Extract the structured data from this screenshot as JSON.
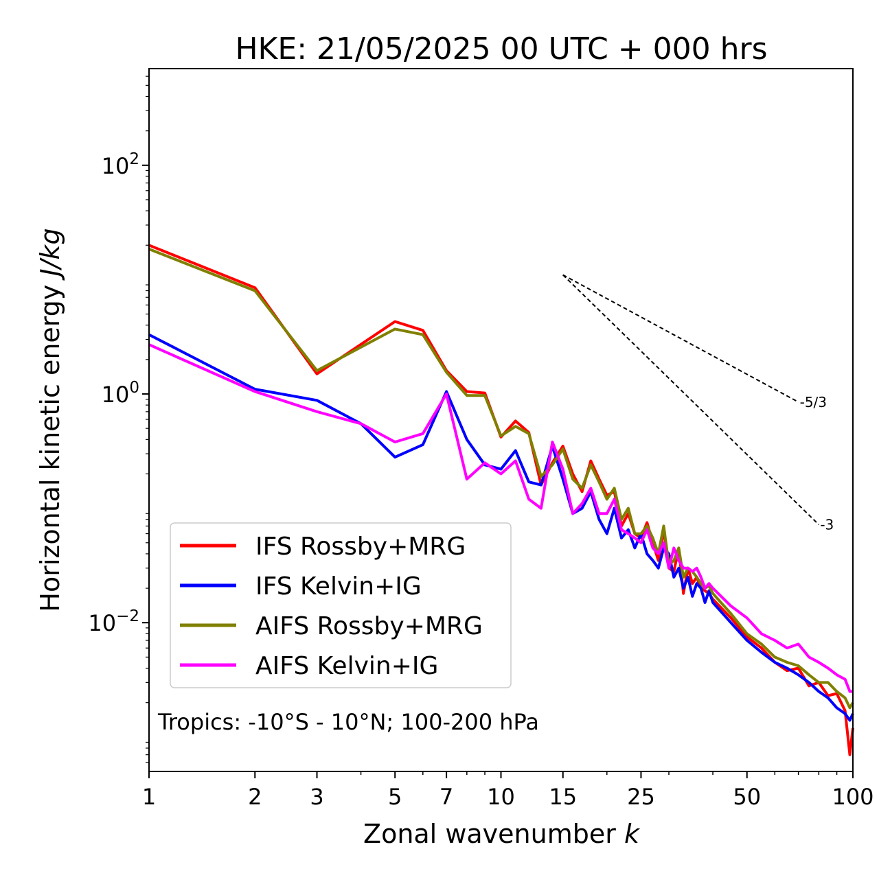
{
  "chart_data": {
    "type": "line",
    "title": "HKE: 21/05/2025 00 UTC + 000 hrs",
    "xlabel": "Zonal wavenumber",
    "xlabel_var": "k",
    "ylabel": "Horizontal kinetic energy",
    "ylabel_unit": "J/kg",
    "xscale": "log",
    "yscale": "log",
    "xlim": [
      1,
      100
    ],
    "ylim": [
      0.0005,
      700
    ],
    "xticks": [
      1,
      2,
      3,
      5,
      7,
      10,
      15,
      25,
      50,
      100
    ],
    "xtick_labels": [
      "1",
      "2",
      "3",
      "5",
      "7",
      "10",
      "15",
      "25",
      "50",
      "100"
    ],
    "yticks": [
      100,
      1,
      0.01
    ],
    "ytick_labels": [
      {
        "base": "10",
        "exp": "2"
      },
      {
        "base": "10",
        "exp": "0"
      },
      {
        "base": "10",
        "exp": "−2"
      }
    ],
    "grid": false,
    "legend_position": "lower-left",
    "annotation": "Tropics: -10°S - 10°N; 100-200 hPa",
    "reference_lines": [
      {
        "label": "-5/3",
        "slope": -1.6667,
        "x": [
          15,
          70
        ],
        "y": [
          11,
          0.85
        ]
      },
      {
        "label": "-3",
        "slope": -3,
        "x": [
          15,
          80
        ],
        "y": [
          11,
          0.072
        ]
      }
    ],
    "series": [
      {
        "name": "IFS Rossby+MRG",
        "color": "#ff0000",
        "x": [
          1,
          2,
          3,
          5,
          6,
          7,
          8,
          9,
          10,
          11,
          12,
          13,
          14,
          15,
          16,
          17,
          18,
          19,
          20,
          21,
          22,
          23,
          24,
          25,
          26,
          27,
          28,
          29,
          30,
          31,
          32,
          33,
          34,
          35,
          36,
          37,
          38,
          39,
          40,
          45,
          50,
          55,
          60,
          65,
          70,
          75,
          80,
          85,
          90,
          95,
          98,
          100
        ],
        "y": [
          20,
          8.5,
          1.5,
          4.3,
          3.6,
          1.6,
          1.05,
          1.02,
          0.42,
          0.58,
          0.46,
          0.16,
          0.25,
          0.35,
          0.2,
          0.14,
          0.26,
          0.18,
          0.13,
          0.14,
          0.07,
          0.09,
          0.06,
          0.055,
          0.075,
          0.05,
          0.035,
          0.065,
          0.03,
          0.028,
          0.045,
          0.018,
          0.03,
          0.022,
          0.025,
          0.02,
          0.019,
          0.018,
          0.016,
          0.011,
          0.0075,
          0.006,
          0.0045,
          0.0038,
          0.004,
          0.0028,
          0.003,
          0.0023,
          0.0024,
          0.0017,
          0.0007,
          0.0012
        ]
      },
      {
        "name": "IFS Kelvin+IG",
        "color": "#0000ff",
        "x": [
          1,
          2,
          3,
          4,
          5,
          6,
          7,
          8,
          9,
          10,
          11,
          12,
          13,
          14,
          15,
          16,
          17,
          18,
          19,
          20,
          21,
          22,
          23,
          24,
          25,
          26,
          27,
          28,
          29,
          30,
          31,
          32,
          33,
          34,
          35,
          36,
          37,
          38,
          39,
          40,
          45,
          50,
          55,
          60,
          65,
          70,
          75,
          80,
          85,
          90,
          95,
          98,
          100
        ],
        "y": [
          3.3,
          1.1,
          0.88,
          0.55,
          0.28,
          0.36,
          1.05,
          0.4,
          0.24,
          0.22,
          0.32,
          0.17,
          0.16,
          0.35,
          0.18,
          0.09,
          0.1,
          0.14,
          0.08,
          0.06,
          0.1,
          0.055,
          0.065,
          0.045,
          0.06,
          0.04,
          0.035,
          0.03,
          0.045,
          0.04,
          0.025,
          0.03,
          0.02,
          0.025,
          0.017,
          0.022,
          0.02,
          0.015,
          0.019,
          0.015,
          0.01,
          0.007,
          0.0055,
          0.0045,
          0.004,
          0.0035,
          0.003,
          0.0025,
          0.0022,
          0.0018,
          0.0016,
          0.0014,
          0.0016
        ]
      },
      {
        "name": "AIFS Rossby+MRG",
        "color": "#808000",
        "x": [
          1,
          2,
          3,
          5,
          6,
          7,
          8,
          9,
          10,
          11,
          12,
          13,
          14,
          15,
          16,
          17,
          18,
          19,
          20,
          21,
          22,
          23,
          24,
          25,
          26,
          27,
          28,
          29,
          30,
          31,
          32,
          33,
          34,
          35,
          36,
          37,
          38,
          39,
          40,
          45,
          50,
          55,
          60,
          65,
          70,
          75,
          80,
          85,
          90,
          95,
          98,
          100
        ],
        "y": [
          18.5,
          8.0,
          1.6,
          3.7,
          3.3,
          1.55,
          0.97,
          0.97,
          0.43,
          0.52,
          0.45,
          0.19,
          0.24,
          0.33,
          0.18,
          0.15,
          0.24,
          0.17,
          0.12,
          0.15,
          0.08,
          0.1,
          0.06,
          0.06,
          0.07,
          0.055,
          0.04,
          0.07,
          0.032,
          0.035,
          0.045,
          0.025,
          0.03,
          0.028,
          0.025,
          0.022,
          0.02,
          0.021,
          0.018,
          0.012,
          0.008,
          0.0065,
          0.005,
          0.0045,
          0.0042,
          0.0035,
          0.003,
          0.003,
          0.0025,
          0.0022,
          0.0018,
          0.002
        ]
      },
      {
        "name": "AIFS Kelvin+IG",
        "color": "#ff00ff",
        "x": [
          1,
          2,
          3,
          4,
          5,
          6,
          7,
          8,
          9,
          10,
          11,
          12,
          13,
          14,
          15,
          16,
          17,
          18,
          19,
          20,
          21,
          22,
          23,
          24,
          25,
          26,
          27,
          28,
          29,
          30,
          31,
          32,
          33,
          34,
          35,
          36,
          37,
          38,
          39,
          40,
          45,
          50,
          55,
          60,
          65,
          70,
          75,
          80,
          85,
          90,
          95,
          98,
          100
        ],
        "y": [
          2.7,
          1.05,
          0.7,
          0.55,
          0.38,
          0.45,
          1.0,
          0.18,
          0.25,
          0.2,
          0.26,
          0.12,
          0.1,
          0.38,
          0.22,
          0.09,
          0.11,
          0.15,
          0.09,
          0.09,
          0.12,
          0.065,
          0.06,
          0.055,
          0.05,
          0.065,
          0.045,
          0.04,
          0.05,
          0.03,
          0.045,
          0.035,
          0.03,
          0.03,
          0.028,
          0.03,
          0.025,
          0.02,
          0.022,
          0.02,
          0.014,
          0.011,
          0.008,
          0.007,
          0.006,
          0.0065,
          0.005,
          0.0045,
          0.004,
          0.0035,
          0.0032,
          0.0025,
          0.0025
        ]
      }
    ]
  }
}
